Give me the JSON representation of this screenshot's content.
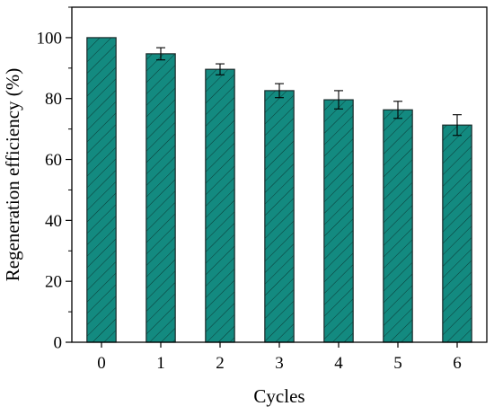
{
  "chart_data": {
    "type": "bar",
    "xlabel": "Cycles",
    "ylabel": "Regeneration efficiency (%)",
    "categories": [
      "0",
      "1",
      "2",
      "3",
      "4",
      "5",
      "6"
    ],
    "values": [
      100,
      94.7,
      89.6,
      82.6,
      79.6,
      76.3,
      71.3
    ],
    "errors": [
      0,
      2.0,
      1.8,
      2.3,
      3.0,
      2.8,
      3.4
    ],
    "ylim": [
      0,
      110
    ],
    "yticks": [
      0,
      20,
      40,
      60,
      80,
      100
    ],
    "grid": false,
    "bar_color": "#138a80",
    "edge_color": "#1a2a2a"
  }
}
